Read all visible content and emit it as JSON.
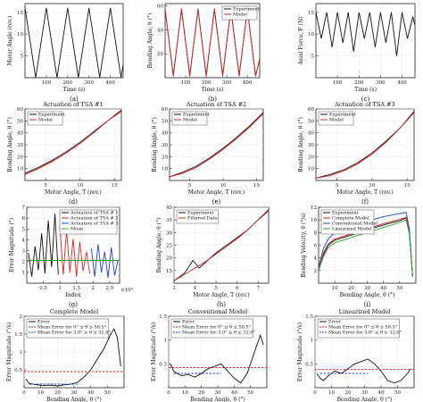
{
  "chart_data": [
    {
      "id": "a",
      "caption": "(a)",
      "type": "line",
      "title": "",
      "xlabel": "Time (s)",
      "ylabel": "Motor Angle (rev.)",
      "xlim": [
        0,
        460
      ],
      "ylim": [
        0,
        17
      ],
      "xticks": [
        100,
        200,
        300,
        400
      ],
      "yticks": [
        5,
        10,
        15
      ],
      "series": [
        {
          "color": "#111111",
          "x": [
            0,
            50,
            100,
            150,
            200,
            250,
            300,
            350,
            400,
            450,
            460
          ],
          "y": [
            16,
            0,
            16,
            0,
            16,
            0,
            16,
            0,
            16,
            0,
            3
          ]
        }
      ]
    },
    {
      "id": "b",
      "caption": "(b)",
      "type": "line",
      "title": "",
      "xlabel": "Time (s)",
      "ylabel": "Bending Angle, θ (°)",
      "xlim": [
        0,
        460
      ],
      "ylim": [
        0,
        62
      ],
      "xticks": [
        100,
        200,
        300,
        400
      ],
      "yticks": [
        20,
        40,
        60
      ],
      "legend": [
        "Experiment",
        "Model"
      ],
      "legend_pos": "top-right",
      "series": [
        {
          "name": "Experiment",
          "color": "#111111",
          "x": [
            0,
            40,
            80,
            120,
            160,
            200,
            240,
            280,
            320,
            360,
            400,
            440,
            460
          ],
          "y": [
            57,
            2,
            57,
            2,
            57,
            2,
            57,
            2,
            57,
            2,
            57,
            2,
            15
          ]
        },
        {
          "name": "Model",
          "color": "#d62728",
          "x": [
            0,
            40,
            80,
            120,
            160,
            200,
            240,
            280,
            320,
            360,
            400,
            440,
            460
          ],
          "y": [
            58,
            1,
            58,
            1,
            58,
            1,
            58,
            1,
            58,
            1,
            58,
            1,
            16
          ]
        }
      ]
    },
    {
      "id": "c",
      "caption": "(c)",
      "type": "line",
      "title": "",
      "xlabel": "Time (s)",
      "ylabel": "Axial Force, F (N)",
      "xlim": [
        0,
        460
      ],
      "ylim": [
        0,
        17
      ],
      "xticks": [
        100,
        200,
        300,
        400
      ],
      "yticks": [
        5,
        10,
        15
      ],
      "series": [
        {
          "color": "#111111",
          "x": [
            0,
            25,
            50,
            75,
            100,
            125,
            150,
            175,
            200,
            225,
            250,
            275,
            300,
            325,
            350,
            375,
            400,
            425,
            450,
            460
          ],
          "y": [
            15,
            9,
            15,
            7,
            15,
            8,
            15,
            6,
            15,
            9,
            15,
            7,
            15,
            8,
            15,
            5,
            15,
            9,
            14,
            12
          ]
        }
      ]
    },
    {
      "id": "d",
      "caption": "(d)",
      "type": "line",
      "title": "Actuation of TSA #1",
      "xlabel": "Motor Angle, T (rev.)",
      "ylabel": "Bending Angle, θ (°)",
      "xlim": [
        2,
        16
      ],
      "ylim": [
        0,
        60
      ],
      "xticks": [
        5,
        10,
        15
      ],
      "yticks": [
        10,
        20,
        30,
        40,
        50,
        60
      ],
      "legend": [
        "Experiment",
        "Model"
      ],
      "legend_pos": "top-left",
      "series": [
        {
          "name": "Experiment",
          "color": "#111111",
          "x": [
            2,
            4,
            6,
            8,
            10,
            12,
            14,
            16
          ],
          "y": [
            6,
            11,
            17,
            24,
            32,
            41,
            50,
            59
          ]
        },
        {
          "name": "Model",
          "color": "#d62728",
          "x": [
            2,
            4,
            6,
            8,
            10,
            12,
            14,
            16
          ],
          "y": [
            5,
            10,
            16,
            23,
            31,
            40,
            50,
            58
          ]
        }
      ]
    },
    {
      "id": "e",
      "caption": "(e)",
      "type": "line",
      "title": "Actuation of TSA #2",
      "xlabel": "Motor Angle, T (rev.)",
      "ylabel": "Bending Angle, θ (°)",
      "xlim": [
        2,
        16
      ],
      "ylim": [
        0,
        60
      ],
      "xticks": [
        5,
        10,
        15
      ],
      "yticks": [
        10,
        20,
        30,
        40,
        50,
        60
      ],
      "legend": [
        "Experiment",
        "Model"
      ],
      "legend_pos": "top-left",
      "series": [
        {
          "name": "Experiment",
          "color": "#111111",
          "x": [
            2,
            4,
            6,
            8,
            10,
            12,
            14,
            16
          ],
          "y": [
            3,
            7,
            12,
            19,
            27,
            36,
            46,
            57
          ]
        },
        {
          "name": "Model",
          "color": "#d62728",
          "x": [
            2,
            4,
            6,
            8,
            10,
            12,
            14,
            16
          ],
          "y": [
            3,
            6,
            11,
            18,
            26,
            35,
            45,
            56
          ]
        }
      ]
    },
    {
      "id": "f",
      "caption": "(f)",
      "type": "line",
      "title": "Actuation of TSA #3",
      "xlabel": "Motor Angle, T (rev.)",
      "ylabel": "Bending Angle, θ (°)",
      "xlim": [
        2,
        16
      ],
      "ylim": [
        0,
        60
      ],
      "xticks": [
        5,
        10,
        15
      ],
      "yticks": [
        10,
        20,
        30,
        40,
        50,
        60
      ],
      "legend": [
        "Experiment",
        "Model"
      ],
      "legend_pos": "top-left",
      "series": [
        {
          "name": "Experiment",
          "color": "#111111",
          "x": [
            2,
            4,
            6,
            8,
            10,
            12,
            14,
            16
          ],
          "y": [
            2,
            5,
            9,
            15,
            23,
            33,
            44,
            58
          ]
        },
        {
          "name": "Model",
          "color": "#d62728",
          "x": [
            2,
            4,
            6,
            8,
            10,
            12,
            14,
            16
          ],
          "y": [
            2,
            4,
            8,
            14,
            22,
            32,
            44,
            57
          ]
        }
      ]
    },
    {
      "id": "g",
      "caption": "(g)",
      "type": "line",
      "title": "",
      "xlabel": "Index",
      "ylabel": "Error Magnitude (°)",
      "xlim": [
        0,
        2.8
      ],
      "ylim": [
        0,
        7
      ],
      "xticks": [
        0.5,
        1,
        1.5,
        2,
        2.5
      ],
      "xtick_labels": [
        "0.5",
        "1",
        "1.5",
        "2",
        "2.5"
      ],
      "yticks": [
        1,
        2,
        3,
        4,
        5,
        6,
        7
      ],
      "x_multiplier": "×10⁴",
      "legend": [
        "Actuation of TSA # 1",
        "Actuation of TSA # 2",
        "Actuation of TSA # 3",
        "Mean"
      ],
      "legend_pos": "top-right",
      "series": [
        {
          "name": "Actuation of TSA # 1",
          "color": "#111111",
          "x": [
            0.05,
            0.15,
            0.25,
            0.35,
            0.45,
            0.55,
            0.65,
            0.75,
            0.85,
            0.95
          ],
          "y": [
            2.8,
            0.6,
            3.4,
            1.2,
            4.6,
            0.9,
            5.8,
            1.5,
            6.4,
            0.8
          ]
        },
        {
          "name": "Actuation of TSA # 2",
          "color": "#d62728",
          "x": [
            1.0,
            1.1,
            1.2,
            1.3,
            1.4,
            1.5,
            1.6,
            1.7,
            1.8,
            1.9
          ],
          "y": [
            5.2,
            0.8,
            4.9,
            1.0,
            4.1,
            0.6,
            3.8,
            1.1,
            2.9,
            0.9
          ]
        },
        {
          "name": "Actuation of TSA # 3",
          "color": "#2040d0",
          "x": [
            1.95,
            2.05,
            2.15,
            2.25,
            2.35,
            2.45,
            2.55,
            2.65,
            2.75
          ],
          "y": [
            3.2,
            0.6,
            3.6,
            1.0,
            2.9,
            0.5,
            3.3,
            0.7,
            2.1
          ]
        },
        {
          "name": "Mean",
          "color": "#2ca02c",
          "x": [
            0,
            2.8
          ],
          "y": [
            2.1,
            2.1
          ]
        }
      ]
    },
    {
      "id": "h",
      "caption": "(h)",
      "type": "line",
      "title": "",
      "xlabel": "Motor Angle, T (rev.)",
      "ylabel": "Bending Angle, θ (°)",
      "xlim": [
        3,
        7.5
      ],
      "ylim": [
        10,
        40
      ],
      "xticks": [
        3,
        4,
        5,
        6,
        7
      ],
      "yticks": [
        15,
        20,
        25,
        30,
        35,
        40
      ],
      "legend": [
        "Experiment",
        "Filtered Data"
      ],
      "legend_pos": "top-left",
      "series": [
        {
          "name": "Experiment",
          "color": "#111111",
          "x": [
            3,
            3.5,
            3.9,
            4.2,
            4.6,
            5,
            5.5,
            6,
            6.5,
            7,
            7.5
          ],
          "y": [
            11,
            14,
            19,
            16,
            19,
            22,
            25,
            28,
            31,
            35,
            39
          ]
        },
        {
          "name": "Filtered Data",
          "color": "#d62728",
          "x": [
            3,
            3.5,
            4,
            4.5,
            5,
            5.5,
            6,
            6.5,
            7,
            7.5
          ],
          "y": [
            11,
            13.5,
            16,
            18.5,
            21.5,
            24.5,
            27.5,
            31,
            35,
            38.5
          ]
        }
      ]
    },
    {
      "id": "i",
      "caption": "(i)",
      "type": "line",
      "title": "",
      "xlabel": "Bending Angle, θ (°)",
      "ylabel": "Bending Velocity, θ̇ (°/s)",
      "xlim": [
        0,
        60
      ],
      "ylim": [
        0,
        12
      ],
      "xticks": [
        10,
        20,
        30,
        40,
        50
      ],
      "yticks": [
        2,
        4,
        6,
        8,
        10,
        12
      ],
      "legend": [
        "Experiment",
        "Complete Model",
        "Conventional Model",
        "Linearized Model"
      ],
      "legend_pos": "top-left",
      "series": [
        {
          "name": "Experiment",
          "color": "#111111",
          "x": [
            0,
            3,
            6,
            10,
            20,
            30,
            40,
            50,
            54,
            56,
            58
          ],
          "y": [
            2,
            4.5,
            6,
            6.8,
            7.6,
            8.4,
            9.2,
            9.9,
            10.3,
            8,
            1
          ]
        },
        {
          "name": "Complete Model",
          "color": "#d62728",
          "x": [
            0,
            3,
            6,
            10,
            20,
            30,
            40,
            50,
            54,
            56,
            58
          ],
          "y": [
            2.2,
            4.8,
            6.2,
            7,
            7.8,
            8.6,
            9.4,
            10.1,
            10.4,
            8.2,
            1
          ]
        },
        {
          "name": "Conventional Model",
          "color": "#2040d0",
          "x": [
            0,
            3,
            6,
            10,
            20,
            30,
            40,
            50,
            54,
            56,
            58
          ],
          "y": [
            2.5,
            5.5,
            7,
            8,
            9,
            9.8,
            10.5,
            11,
            11.2,
            8.6,
            1
          ]
        },
        {
          "name": "Linearized Model",
          "color": "#2ca02c",
          "x": [
            0,
            3,
            6,
            10,
            20,
            30,
            40,
            50,
            54,
            56,
            58
          ],
          "y": [
            2,
            4.2,
            5.6,
            6.4,
            7.2,
            8,
            8.8,
            9.6,
            10,
            7.8,
            1
          ]
        }
      ]
    },
    {
      "id": "j",
      "caption": "(j)",
      "type": "line",
      "title": "Complete Model",
      "xlabel": "Bending Angle, θ (°)",
      "ylabel": "Error Magnitude (°/s)",
      "xlim": [
        0,
        60
      ],
      "ylim": [
        0,
        2
      ],
      "xticks": [
        0,
        10,
        20,
        30,
        40,
        50
      ],
      "yticks": [
        0.5,
        1,
        1.5,
        2
      ],
      "legend": [
        "Error",
        "Mean Error for 0° ≤ θ ≤ 58.5°",
        "Mean Error for 3.0° ≤ θ ≤ 32.0°"
      ],
      "legend_pos": "top-left",
      "series": [
        {
          "name": "Error",
          "color": "#111111",
          "x": [
            1,
            3,
            5,
            8,
            12,
            16,
            20,
            24,
            28,
            32,
            36,
            40,
            44,
            48,
            52,
            54,
            56,
            58
          ],
          "y": [
            0.25,
            0.12,
            0.1,
            0.08,
            0.06,
            0.07,
            0.05,
            0.08,
            0.1,
            0.15,
            0.3,
            0.5,
            0.8,
            1.1,
            1.5,
            1.65,
            1.4,
            0.6
          ]
        },
        {
          "name": "Mean Error for 0° ≤ θ ≤ 58.5°",
          "color": "#d62728",
          "dash": true,
          "x": [
            0,
            60
          ],
          "y": [
            0.45,
            0.45
          ]
        },
        {
          "name": "Mean Error for 3.0° ≤ θ ≤ 32.0°",
          "color": "#2040d0",
          "dash": true,
          "x": [
            3,
            32
          ],
          "y": [
            0.1,
            0.1
          ]
        }
      ]
    },
    {
      "id": "k",
      "caption": "(k)",
      "type": "line",
      "title": "Conventional Model",
      "xlabel": "Bending Angle, θ (°)",
      "ylabel": "Error Magnitude (°/s)",
      "xlim": [
        0,
        60
      ],
      "ylim": [
        0,
        1.5
      ],
      "xticks": [
        0,
        10,
        20,
        30,
        40,
        50
      ],
      "yticks": [
        0.5,
        1,
        1.5
      ],
      "legend": [
        "Error",
        "Mean Error for 0° ≤ θ ≤ 58.5°",
        "Mean Error for 3.0° ≤ θ ≤ 32.0°"
      ],
      "legend_pos": "top-left",
      "series": [
        {
          "name": "Error",
          "color": "#111111",
          "x": [
            1,
            3,
            5,
            8,
            12,
            16,
            20,
            24,
            28,
            32,
            36,
            40,
            44,
            48,
            52,
            56,
            58
          ],
          "y": [
            0.5,
            0.35,
            0.3,
            0.25,
            0.28,
            0.22,
            0.3,
            0.4,
            0.45,
            0.5,
            0.35,
            0.2,
            0.1,
            0.3,
            0.7,
            1.1,
            0.9
          ]
        },
        {
          "name": "Mean Error for 0° ≤ θ ≤ 58.5°",
          "color": "#d62728",
          "dash": true,
          "x": [
            0,
            60
          ],
          "y": [
            0.42,
            0.42
          ]
        },
        {
          "name": "Mean Error for 3.0° ≤ θ ≤ 32.0°",
          "color": "#2040d0",
          "dash": true,
          "x": [
            3,
            32
          ],
          "y": [
            0.3,
            0.3
          ]
        }
      ]
    },
    {
      "id": "l",
      "caption": "(l)",
      "type": "line",
      "title": "Linearized Model",
      "xlabel": "Bending Angle, θ (°)",
      "ylabel": "Error Magnitude (°/s)",
      "xlim": [
        0,
        60
      ],
      "ylim": [
        0,
        1.5
      ],
      "xticks": [
        0,
        10,
        20,
        30,
        40,
        50
      ],
      "yticks": [
        0.5,
        1,
        1.5
      ],
      "legend": [
        "Error",
        "Mean Error for 0° ≤ θ ≤ 58.5°",
        "Mean Error for 3.0° ≤ θ ≤ 32.0°"
      ],
      "legend_pos": "top-left",
      "series": [
        {
          "name": "Error",
          "color": "#111111",
          "x": [
            1,
            3,
            5,
            8,
            12,
            16,
            20,
            24,
            28,
            32,
            36,
            40,
            44,
            48,
            52,
            56,
            58
          ],
          "y": [
            0.3,
            0.2,
            0.15,
            0.25,
            0.35,
            0.3,
            0.4,
            0.5,
            0.55,
            0.6,
            0.5,
            0.35,
            0.15,
            0.1,
            0.15,
            0.3,
            0.4
          ]
        },
        {
          "name": "Mean Error for 0° ≤ θ ≤ 58.5°",
          "color": "#d62728",
          "dash": true,
          "x": [
            0,
            60
          ],
          "y": [
            0.38,
            0.38
          ]
        },
        {
          "name": "Mean Error for 3.0° ≤ θ ≤ 32.0°",
          "color": "#2040d0",
          "dash": true,
          "x": [
            3,
            32
          ],
          "y": [
            0.3,
            0.3
          ]
        }
      ]
    }
  ]
}
